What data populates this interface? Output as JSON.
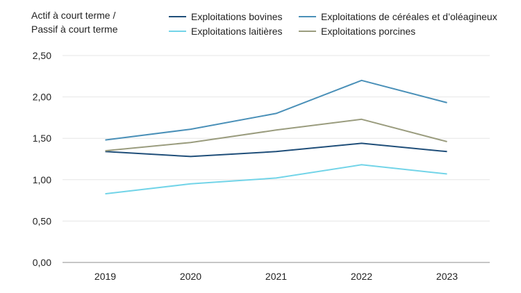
{
  "chart_data": {
    "type": "line",
    "ylabel_lines": [
      "Actif à court terme /",
      "Passif à court terme"
    ],
    "categories": [
      "2019",
      "2020",
      "2021",
      "2022",
      "2023"
    ],
    "ylim": [
      0,
      2.5
    ],
    "yticks": [
      0,
      0.5,
      1.0,
      1.5,
      2.0,
      2.5
    ],
    "ytick_labels": [
      "0,00",
      "0,50",
      "1,00",
      "1,50",
      "2,00",
      "2,50"
    ],
    "grid": true,
    "legend_position": "top",
    "series": [
      {
        "name": "Exploitations bovines",
        "color": "#1F4E79",
        "values": [
          1.34,
          1.28,
          1.34,
          1.44,
          1.34
        ]
      },
      {
        "name": "Exploitations de céréales et d’oléagineux",
        "color": "#4A90B8",
        "values": [
          1.48,
          1.61,
          1.8,
          2.2,
          1.93
        ]
      },
      {
        "name": "Exploitations laitières",
        "color": "#72D4E8",
        "values": [
          0.83,
          0.95,
          1.02,
          1.18,
          1.07
        ]
      },
      {
        "name": "Exploitations porcines",
        "color": "#9A9C7E",
        "values": [
          1.35,
          1.45,
          1.6,
          1.73,
          1.46
        ]
      }
    ]
  }
}
